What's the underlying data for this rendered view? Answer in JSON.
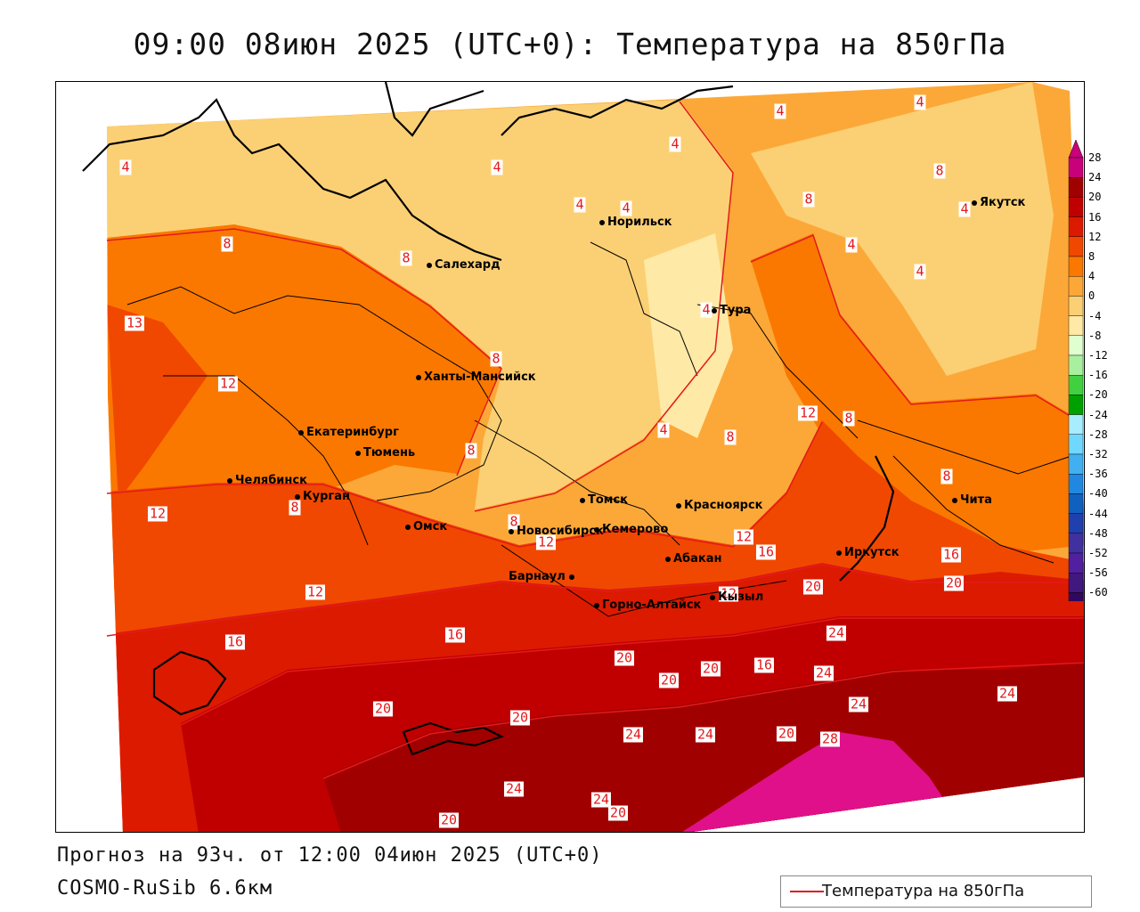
{
  "title": "09:00 08июн 2025 (UTC+0): Температура на 850гПа",
  "footer": {
    "forecast": "Прогноз на 93ч. от 12:00 04июн 2025 (UTC+0)",
    "model": "COSMO-RuSib 6.6км"
  },
  "legend": {
    "label": "Температура на 850гПа",
    "line_color": "#e31a1c"
  },
  "colorbar": {
    "ticks": [
      "28",
      "24",
      "20",
      "16",
      "12",
      "8",
      "4",
      "0",
      "-4",
      "-8",
      "-12",
      "-16",
      "-20",
      "-24",
      "-28",
      "-32",
      "-36",
      "-40",
      "-44",
      "-48",
      "-52",
      "-56",
      "-60"
    ],
    "colors": [
      "#c8007a",
      "#a00000",
      "#c00000",
      "#dc1a00",
      "#f04800",
      "#fa7800",
      "#fca838",
      "#fbd074",
      "#ffe9a6",
      "#e0ffd0",
      "#a8f0a0",
      "#40d040",
      "#00a000",
      "#a8ecff",
      "#70d8ff",
      "#40b0f0",
      "#2088e0",
      "#1060c0",
      "#2040b0",
      "#4030a0",
      "#5020a0",
      "#401880",
      "#300860"
    ]
  },
  "cities": [
    {
      "id": "norilsk",
      "name": "Норильск"
    },
    {
      "id": "salekhard",
      "name": "Салехард"
    },
    {
      "id": "yakutsk",
      "name": "Якутск"
    },
    {
      "id": "tura",
      "name": "Тура"
    },
    {
      "id": "khanty",
      "name": "Ханты-Мансийск"
    },
    {
      "id": "ekb",
      "name": "Екатеринбург"
    },
    {
      "id": "tyumen",
      "name": "Тюмень"
    },
    {
      "id": "chel",
      "name": "Челябинск"
    },
    {
      "id": "kurgan",
      "name": "Курган"
    },
    {
      "id": "omsk",
      "name": "Омск"
    },
    {
      "id": "nsk",
      "name": "Новосибирск"
    },
    {
      "id": "tomsk",
      "name": "Томск"
    },
    {
      "id": "kemerovo",
      "name": "Кемерово"
    },
    {
      "id": "kras",
      "name": "Красноярск"
    },
    {
      "id": "chita",
      "name": "Чита"
    },
    {
      "id": "irk",
      "name": "Иркутск"
    },
    {
      "id": "abakan",
      "name": "Абакан"
    },
    {
      "id": "barnaul",
      "name": "Барнаул"
    },
    {
      "id": "kyzyl",
      "name": "Кызыл"
    },
    {
      "id": "gorno",
      "name": "Горно-Алтайск"
    }
  ],
  "contour_labels": [
    "4",
    "4",
    "4",
    "4",
    "4",
    "8",
    "8",
    "4",
    "4",
    "4",
    "8",
    "8",
    "4",
    "4",
    "4",
    "13",
    "12",
    "8",
    "8",
    "8",
    "4",
    "8",
    "12",
    "8",
    "8",
    "12",
    "12",
    "8",
    "12",
    "16",
    "16",
    "20",
    "12",
    "12",
    "16",
    "16",
    "20",
    "20",
    "20",
    "16",
    "20",
    "24",
    "24",
    "24",
    "20",
    "20",
    "24",
    "24",
    "24",
    "20",
    "28",
    "24",
    "20",
    "24",
    "20"
  ]
}
